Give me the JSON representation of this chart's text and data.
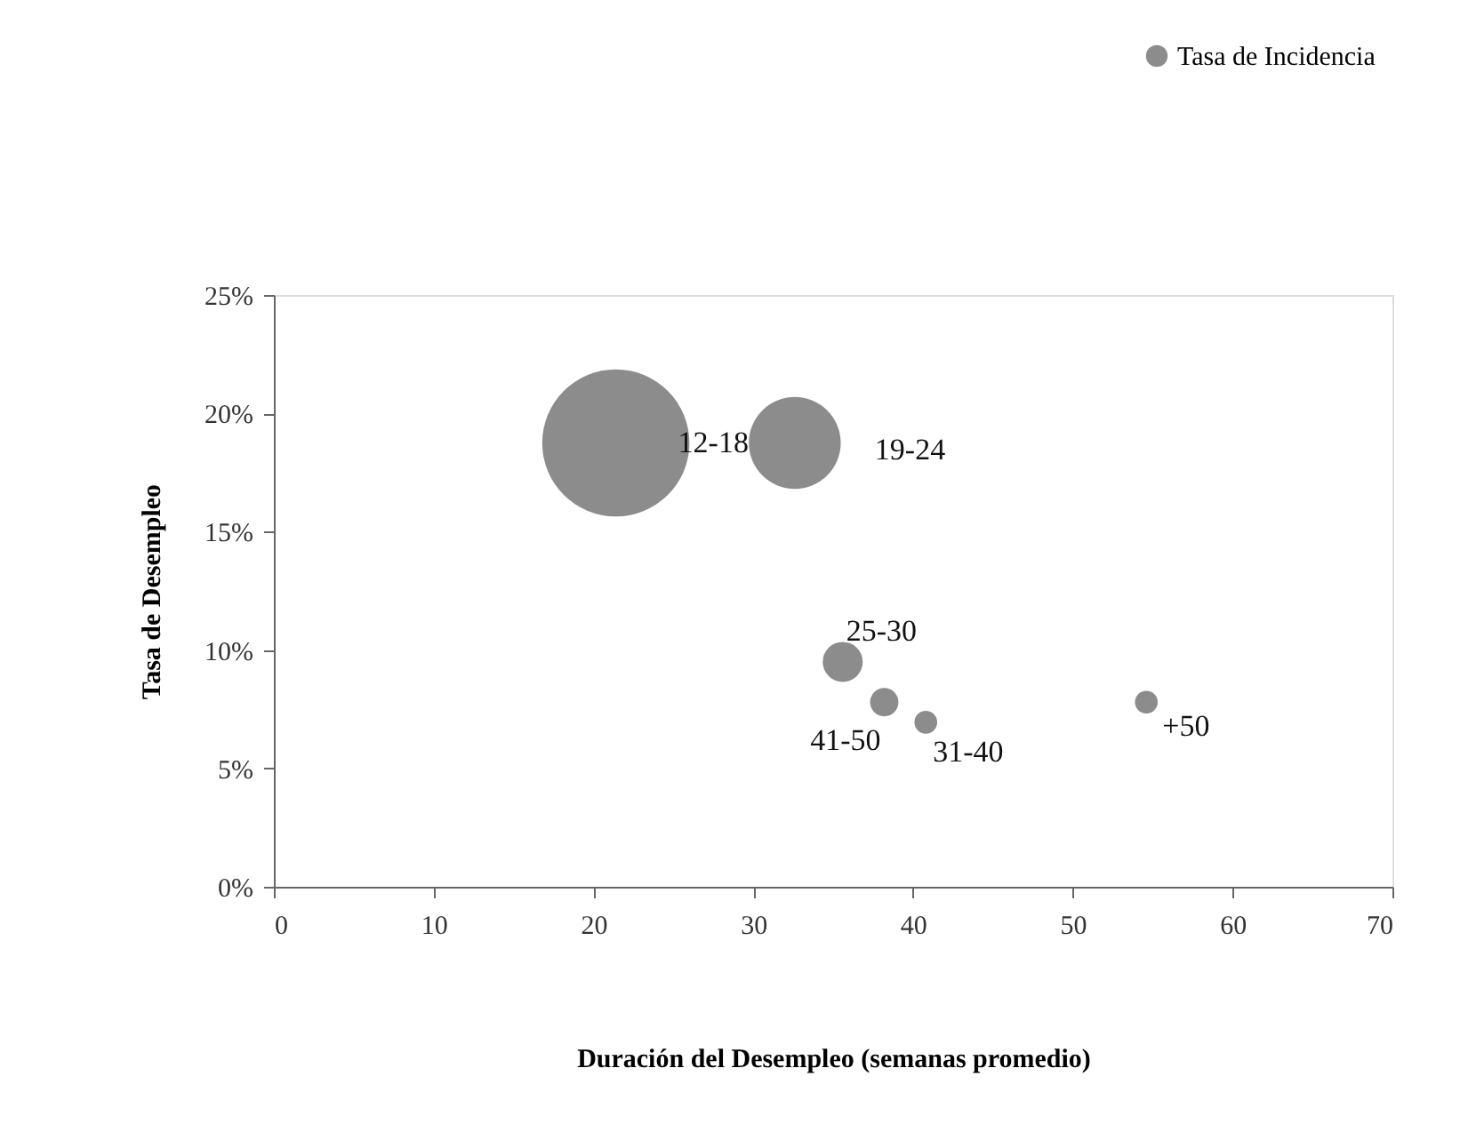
{
  "chart_data": {
    "type": "bubble",
    "xlabel": "Duración del Desempleo (semanas promedio)",
    "ylabel": "Tasa de Desempleo",
    "series": [
      {
        "name": "Tasa de Incidencia",
        "color": "#8c8c8c",
        "x": [
          21.4,
          32.6,
          35.6,
          38.2,
          40.8,
          54.6
        ],
        "values": [
          18.75,
          18.75,
          9.5,
          7.8,
          6.95,
          7.8
        ],
        "sizes": [
          1,
          0.39,
          0.074,
          0.037,
          0.024,
          0.024
        ]
      }
    ],
    "annotations": [
      {
        "text": "12-18",
        "x": 21.4,
        "y": 18.75
      },
      {
        "text": "19-24",
        "x": 32.6,
        "y": 18.75
      },
      {
        "text": "25-30",
        "x": 35.6,
        "y": 9.5
      },
      {
        "text": "41-50",
        "x": 38.2,
        "y": 7.8
      },
      {
        "text": "31-40",
        "x": 40.8,
        "y": 6.95
      },
      {
        "text": "+50",
        "x": 54.6,
        "y": 7.8
      }
    ],
    "xlim": [
      0,
      70
    ],
    "xticks": [
      0,
      10,
      20,
      30,
      40,
      50,
      60,
      70
    ],
    "ylim": [
      0,
      25
    ],
    "yticks": [
      {
        "value": 0,
        "label": "0%"
      },
      {
        "value": 5,
        "label": "5%"
      },
      {
        "value": 10,
        "label": "10%"
      },
      {
        "value": 15,
        "label": "15%"
      },
      {
        "value": 20,
        "label": "20%"
      },
      {
        "value": 25,
        "label": "25%"
      }
    ],
    "grid": false,
    "legend": "top right"
  }
}
